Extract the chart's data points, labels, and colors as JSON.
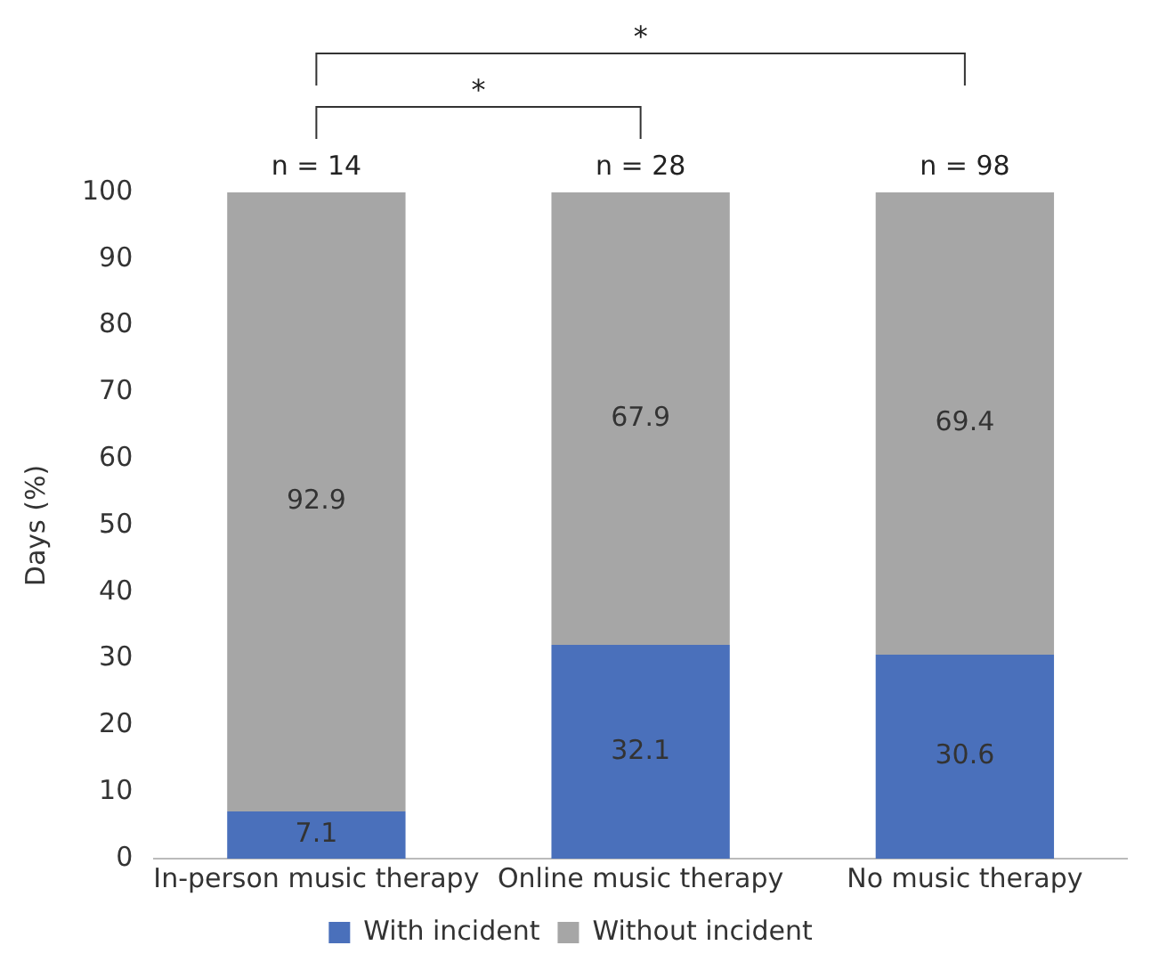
{
  "chart_data": {
    "type": "bar",
    "stacked": true,
    "ylabel": "Days (%)",
    "categories": [
      "In-person music therapy",
      "Online music therapy",
      "No music therapy"
    ],
    "series": [
      {
        "name": "With incident",
        "color": "#4a70bb",
        "values": [
          7.1,
          32.1,
          30.6
        ]
      },
      {
        "name": "Without incident",
        "color": "#a6a6a6",
        "values": [
          92.9,
          67.9,
          69.4
        ]
      }
    ],
    "ylim": [
      0,
      100
    ],
    "yticks": [
      0,
      10,
      20,
      30,
      40,
      50,
      60,
      70,
      80,
      90,
      100
    ],
    "grid": false,
    "legend": "bottom",
    "data_labels": true,
    "annotations": [
      {
        "text": "n = 14",
        "x": "In-person music therapy",
        "y": 100
      },
      {
        "text": "n = 28",
        "x": "Online music therapy",
        "y": 100
      },
      {
        "text": "n = 98",
        "x": "No music therapy",
        "y": 100
      },
      "*",
      "*"
    ]
  }
}
